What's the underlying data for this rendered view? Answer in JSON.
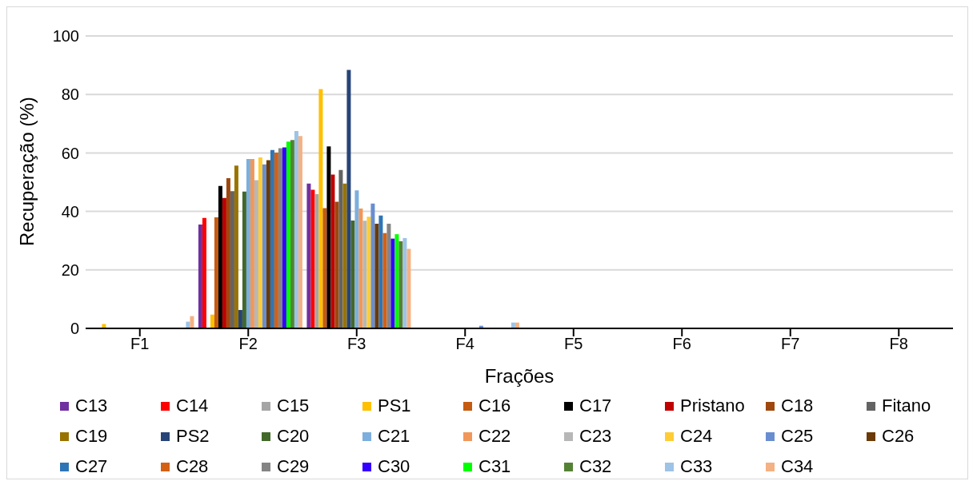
{
  "chart_data": {
    "type": "bar",
    "xlabel": "Frações",
    "ylabel": "Recuperação (%)",
    "categories": [
      "F1",
      "F2",
      "F3",
      "F4",
      "F5",
      "F6",
      "F7",
      "F8"
    ],
    "ylim": [
      0,
      100
    ],
    "yticks": [
      0,
      20,
      40,
      60,
      80,
      100
    ],
    "grid": "y",
    "legend": "bottom",
    "series": [
      {
        "name": "C13",
        "color": "#7030a0",
        "values": [
          0,
          35.5,
          49.5,
          0,
          0,
          0,
          0,
          0
        ]
      },
      {
        "name": "C14",
        "color": "#ff0000",
        "values": [
          0,
          37.8,
          47.4,
          0,
          0,
          0,
          0,
          0
        ]
      },
      {
        "name": "C15",
        "color": "#a5a5a5",
        "values": [
          0,
          0,
          45.9,
          0,
          0,
          0,
          0,
          0
        ]
      },
      {
        "name": "PS1",
        "color": "#ffc000",
        "values": [
          1.5,
          4.7,
          81.8,
          null,
          0,
          0,
          0,
          0
        ]
      },
      {
        "name": "C16",
        "color": "#c55a11",
        "values": [
          0,
          38,
          41.1,
          0,
          0,
          0,
          0,
          0
        ]
      },
      {
        "name": "C17",
        "color": "#000000",
        "values": [
          0,
          48.7,
          62.2,
          0,
          0,
          0,
          0,
          0
        ]
      },
      {
        "name": "Pristano",
        "color": "#c00000",
        "values": [
          0,
          44.6,
          52.6,
          0,
          0,
          0,
          0,
          0
        ]
      },
      {
        "name": "C18",
        "color": "#9e480e",
        "values": [
          0,
          51.4,
          43.3,
          0,
          0,
          0,
          0,
          0
        ]
      },
      {
        "name": "Fitano",
        "color": "#636363",
        "values": [
          0,
          46.9,
          54.2,
          0,
          0,
          0,
          0,
          0
        ]
      },
      {
        "name": "C19",
        "color": "#997300",
        "values": [
          0,
          55.7,
          49.5,
          0,
          0,
          0,
          0,
          0
        ]
      },
      {
        "name": "PS2",
        "color": "#264478",
        "values": [
          null,
          6.3,
          88.4,
          0,
          0,
          0,
          0,
          0
        ]
      },
      {
        "name": "C20",
        "color": "#43682b",
        "values": [
          0,
          46.8,
          36.9,
          0,
          0,
          0,
          0,
          0
        ]
      },
      {
        "name": "C21",
        "color": "#7cafdd",
        "values": [
          0,
          57.9,
          47.2,
          0,
          0,
          0,
          0,
          0
        ]
      },
      {
        "name": "C22",
        "color": "#f1975a",
        "values": [
          0,
          57.9,
          41,
          0,
          0,
          0,
          0,
          0
        ]
      },
      {
        "name": "C23",
        "color": "#b7b7b7",
        "values": [
          0,
          50.7,
          36.8,
          0,
          0,
          0,
          0,
          0
        ]
      },
      {
        "name": "C24",
        "color": "#ffcd33",
        "values": [
          0,
          58.5,
          38.2,
          0,
          0,
          0,
          0,
          0
        ]
      },
      {
        "name": "C25",
        "color": "#698ed0",
        "values": [
          0,
          56.1,
          42.7,
          0.9,
          0,
          0,
          0,
          0
        ]
      },
      {
        "name": "C26",
        "color": "#6b3a07",
        "values": [
          0,
          57.5,
          35.8,
          0,
          0,
          0,
          0,
          0
        ]
      },
      {
        "name": "C27",
        "color": "#2e75b6",
        "values": [
          0,
          61,
          38.6,
          0,
          0,
          0,
          0,
          0
        ]
      },
      {
        "name": "C28",
        "color": "#d46014",
        "values": [
          0,
          60.1,
          32.6,
          0,
          0,
          0,
          0,
          0
        ]
      },
      {
        "name": "C29",
        "color": "#848484",
        "values": [
          0,
          61.6,
          35.8,
          0,
          0,
          0,
          0,
          0
        ]
      },
      {
        "name": "C30",
        "color": "#3300ff",
        "values": [
          0,
          61.9,
          30.7,
          0,
          0,
          0,
          0,
          0
        ]
      },
      {
        "name": "C31",
        "color": "#00ff00",
        "values": [
          0,
          63.9,
          32.2,
          0,
          0,
          0,
          0,
          0
        ]
      },
      {
        "name": "C32",
        "color": "#548235",
        "values": [
          0,
          64.4,
          29.8,
          0,
          0,
          0,
          0,
          0
        ]
      },
      {
        "name": "C33",
        "color": "#9dc3e6",
        "values": [
          2.3,
          67.5,
          30.9,
          2,
          0,
          0,
          0,
          0
        ]
      },
      {
        "name": "C34",
        "color": "#f4b183",
        "values": [
          4.2,
          65.8,
          27.2,
          2,
          0,
          0,
          0,
          0
        ]
      }
    ]
  }
}
